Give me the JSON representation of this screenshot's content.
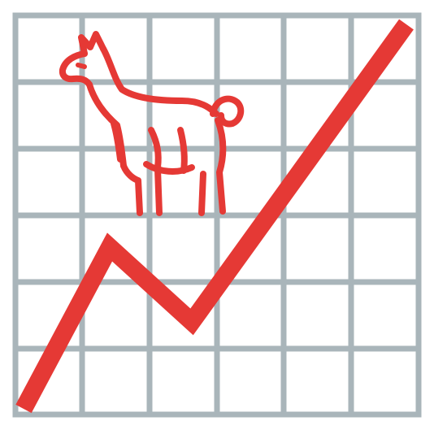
{
  "colors": {
    "grid": "#a9b5ba",
    "line": "#e53935",
    "llama": "#e53935",
    "background": "#ffffff"
  },
  "icon": {
    "grid": "grid-icon",
    "trend_line": "trend-line-icon",
    "llama": "llama-icon"
  }
}
